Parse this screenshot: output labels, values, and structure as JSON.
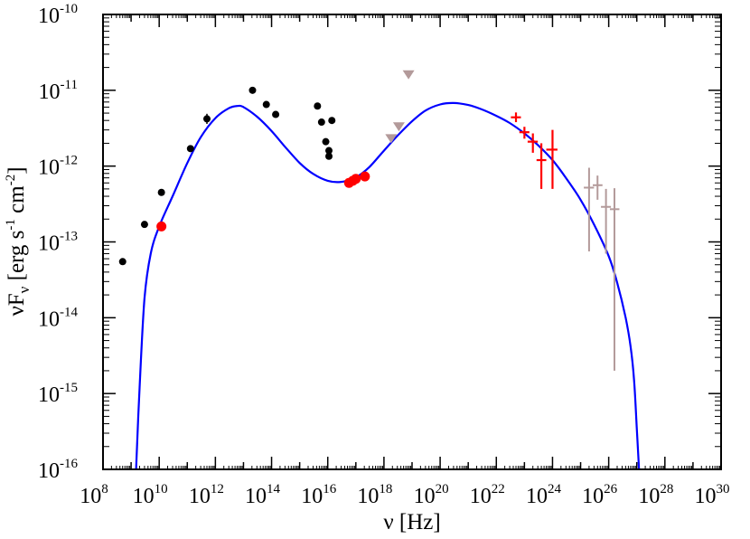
{
  "chart_data": {
    "type": "scatter",
    "title": "",
    "xlabel": {
      "base": "ν",
      "rest": " [Hz]"
    },
    "ylabel": {
      "base": "νF",
      "sub": "ν",
      "rest": " [erg s",
      "exp1": "-1",
      "mid": " cm",
      "exp2": "-2",
      "end": "]"
    },
    "x_scale": "log",
    "y_scale": "log",
    "xlim": [
      100000000.0,
      1e+30
    ],
    "ylim": [
      1e-16,
      1e-10
    ],
    "x_ticks": [
      {
        "base": "10",
        "exp": "8",
        "value": 100000000.0
      },
      {
        "base": "10",
        "exp": "10",
        "value": 10000000000.0
      },
      {
        "base": "10",
        "exp": "12",
        "value": 1000000000000.0
      },
      {
        "base": "10",
        "exp": "14",
        "value": 100000000000000.0
      },
      {
        "base": "10",
        "exp": "16",
        "value": 1e+16
      },
      {
        "base": "10",
        "exp": "18",
        "value": 1e+18
      },
      {
        "base": "10",
        "exp": "20",
        "value": 1e+20
      },
      {
        "base": "10",
        "exp": "22",
        "value": 1e+22
      },
      {
        "base": "10",
        "exp": "24",
        "value": 1e+24
      },
      {
        "base": "10",
        "exp": "26",
        "value": 1e+26
      },
      {
        "base": "10",
        "exp": "28",
        "value": 1e+28
      },
      {
        "base": "10",
        "exp": "30",
        "value": 1e+30
      }
    ],
    "y_ticks": [
      {
        "base": "10",
        "exp": "-16",
        "value": 1e-16
      },
      {
        "base": "10",
        "exp": "-15",
        "value": 1e-15
      },
      {
        "base": "10",
        "exp": "-14",
        "value": 1e-14
      },
      {
        "base": "10",
        "exp": "-13",
        "value": 1e-13
      },
      {
        "base": "10",
        "exp": "-12",
        "value": 1e-12
      },
      {
        "base": "10",
        "exp": "-11",
        "value": 1e-11
      },
      {
        "base": "10",
        "exp": "-10",
        "value": 1e-10
      }
    ],
    "series": [
      {
        "marker": "circle-black",
        "color": "#000000",
        "points": [
          {
            "x": 500000000.0,
            "y": 5.5e-14
          },
          {
            "x": 3000000000.0,
            "y": 1.7e-13
          },
          {
            "x": 12000000000.0,
            "y": 4.5e-13
          },
          {
            "x": 130000000000.0,
            "y": 1.7e-12
          },
          {
            "x": 500000000000.0,
            "y": 4.2e-12,
            "yerr_lo": 3.6e-12,
            "yerr_hi": 4.9e-12
          },
          {
            "x": 21000000000000.0,
            "y": 1e-11
          },
          {
            "x": 65000000000000.0,
            "y": 6.5e-12
          },
          {
            "x": 140000000000000.0,
            "y": 4.8e-12
          },
          {
            "x": 4300000000000000.0,
            "y": 6.2e-12
          },
          {
            "x": 6000000000000000.0,
            "y": 3.8e-12
          },
          {
            "x": 8500000000000000.0,
            "y": 2.1e-12
          },
          {
            "x": 1.1e+16,
            "y": 1.6e-12
          },
          {
            "x": 1.1e+16,
            "y": 1.35e-12
          },
          {
            "x": 1.4e+16,
            "y": 4e-12
          }
        ]
      },
      {
        "marker": "circle-red",
        "color": "#ff0000",
        "points": [
          {
            "x": 12000000000.0,
            "y": 1.6e-13
          },
          {
            "x": 5.7e+16,
            "y": 6e-13
          },
          {
            "x": 7.8e+16,
            "y": 6.4e-13
          },
          {
            "x": 1e+17,
            "y": 6.8e-13
          },
          {
            "x": 2.1e+17,
            "y": 7.3e-13
          }
        ]
      },
      {
        "marker": "triangle-down",
        "color": "#b39a9a",
        "points": [
          {
            "x": 1.8e+18,
            "y": 2.3e-12
          },
          {
            "x": 3.4e+18,
            "y": 3.3e-12
          },
          {
            "x": 7.5e+18,
            "y": 1.6e-11
          }
        ]
      },
      {
        "marker": "cross-red",
        "color": "#ff0000",
        "points": [
          {
            "x": 5e+22,
            "y": 4.4e-12,
            "xerr_lo": 3.3e+22,
            "xerr_hi": 7.5e+22,
            "yerr_lo": 3.8e-12,
            "yerr_hi": 5.1e-12
          },
          {
            "x": 1e+23,
            "y": 2.8e-12,
            "xerr_lo": 6.6e+22,
            "xerr_hi": 1.5e+23,
            "yerr_lo": 2.3e-12,
            "yerr_hi": 3.3e-12
          },
          {
            "x": 2e+23,
            "y": 2.1e-12,
            "xerr_lo": 1.3e+23,
            "xerr_hi": 3e+23,
            "yerr_lo": 1.5e-12,
            "yerr_hi": 2.7e-12
          },
          {
            "x": 4e+23,
            "y": 1.2e-12,
            "xerr_lo": 2.7e+23,
            "xerr_hi": 6e+23,
            "yerr_lo": 5e-13,
            "yerr_hi": 2e-12
          },
          {
            "x": 1e+24,
            "y": 1.65e-12,
            "xerr_lo": 6e+23,
            "xerr_hi": 1.5e+24,
            "yerr_lo": 5e-13,
            "yerr_hi": 3e-12
          }
        ]
      },
      {
        "marker": "cross-tan",
        "color": "#b39a9a",
        "points": [
          {
            "x": 2e+25,
            "y": 5.2e-13,
            "xerr_lo": 1.3e+25,
            "xerr_hi": 3e+25,
            "yerr_lo": 7.5e-14,
            "yerr_hi": 9.5e-13
          },
          {
            "x": 4e+25,
            "y": 5.6e-13,
            "xerr_lo": 2.7e+25,
            "xerr_hi": 6e+25,
            "yerr_lo": 3.6e-13,
            "yerr_hi": 7.5e-13
          },
          {
            "x": 8e+25,
            "y": 2.9e-13,
            "xerr_lo": 5.3e+25,
            "xerr_hi": 1.2e+26,
            "yerr_lo": 7e-14,
            "yerr_hi": 5e-13
          },
          {
            "x": 1.6e+26,
            "y": 2.7e-13,
            "xerr_lo": 1.1e+26,
            "xerr_hi": 2.4e+26,
            "yerr_lo": 2e-15,
            "yerr_hi": 5.1e-13
          }
        ]
      }
    ],
    "model_curve": {
      "color": "#0000ff",
      "points": [
        [
          1500000000.0,
          1e-16
        ],
        [
          2000000000.0,
          1.2e-15
        ],
        [
          3000000000.0,
          1.8e-14
        ],
        [
          5000000000.0,
          7e-14
        ],
        [
          10000000000.0,
          1.6e-13
        ],
        [
          30000000000.0,
          4e-13
        ],
        [
          100000000000.0,
          1.1e-12
        ],
        [
          300000000000.0,
          2.4e-12
        ],
        [
          1000000000000.0,
          4.3e-12
        ],
        [
          3000000000000.0,
          5.8e-12
        ],
        [
          6000000000000.0,
          6.2e-12
        ],
        [
          10000000000000.0,
          6e-12
        ],
        [
          30000000000000.0,
          4.5e-12
        ],
        [
          100000000000000.0,
          2.9e-12
        ],
        [
          300000000000000.0,
          1.8e-12
        ],
        [
          1000000000000000.0,
          1.1e-12
        ],
        [
          3000000000000000.0,
          7.9e-13
        ],
        [
          1e+16,
          6.4e-13
        ],
        [
          3e+16,
          6.2e-13
        ],
        [
          1e+17,
          7.1e-13
        ],
        [
          3e+17,
          9.7e-13
        ],
        [
          1e+18,
          1.6e-12
        ],
        [
          3e+18,
          2.5e-12
        ],
        [
          1e+19,
          3.9e-12
        ],
        [
          3e+19,
          5.4e-12
        ],
        [
          1e+20,
          6.5e-12
        ],
        [
          3e+20,
          6.8e-12
        ],
        [
          1e+21,
          6.4e-12
        ],
        [
          3e+21,
          5.6e-12
        ],
        [
          1e+22,
          4.6e-12
        ],
        [
          3e+22,
          3.7e-12
        ],
        [
          1e+23,
          2.7e-12
        ],
        [
          3e+23,
          1.9e-12
        ],
        [
          1e+24,
          1.2e-12
        ],
        [
          3e+24,
          7e-13
        ],
        [
          1e+25,
          3.6e-13
        ],
        [
          3e+25,
          1.7e-13
        ],
        [
          1e+26,
          6.5e-14
        ],
        [
          2e+26,
          2.9e-14
        ],
        [
          4e+26,
          1e-14
        ],
        [
          6e+26,
          4.2e-15
        ],
        [
          8e+26,
          1.5e-15
        ],
        [
          1e+27,
          3.5e-16
        ],
        [
          1.2e+27,
          1e-16
        ]
      ]
    }
  }
}
